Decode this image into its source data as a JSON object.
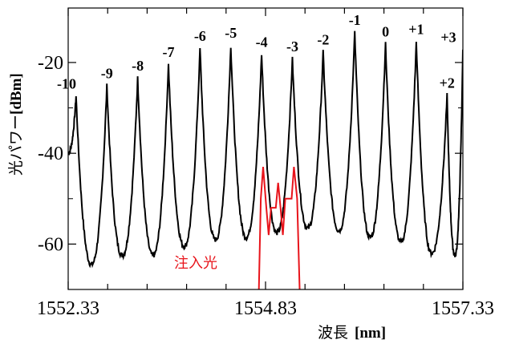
{
  "chart_data": {
    "type": "line",
    "title": "",
    "xlabel_main": "波長",
    "xlabel_unit": "[nm]",
    "ylabel_main": "光パワー",
    "ylabel_unit": "[dBm]",
    "xlim": [
      1552.33,
      1557.33
    ],
    "ylim": [
      -70,
      -8
    ],
    "x_ticks": [
      1552.33,
      1554.83,
      1557.33
    ],
    "x_tick_labels": [
      "1552.33",
      "1554.83",
      "1557.33"
    ],
    "y_ticks": [
      -20,
      -40,
      -60
    ],
    "y_tick_labels": [
      "-20",
      "-40",
      "-60"
    ],
    "grid": false,
    "series": [
      {
        "color": "#000000",
        "peaks": [
          {
            "label": "-10",
            "x": 1552.43,
            "y": -27.5
          },
          {
            "label": "-9",
            "x": 1552.82,
            "y": -25.2
          },
          {
            "label": "-8",
            "x": 1553.21,
            "y": -23.5
          },
          {
            "label": "-7",
            "x": 1553.6,
            "y": -20.5
          },
          {
            "label": "-6",
            "x": 1554.0,
            "y": -17.0
          },
          {
            "label": "-5",
            "x": 1554.39,
            "y": -16.3
          },
          {
            "label": "-4",
            "x": 1554.78,
            "y": -18.3
          },
          {
            "label": "-3",
            "x": 1555.17,
            "y": -19.3
          },
          {
            "label": "-2",
            "x": 1555.56,
            "y": -17.8
          },
          {
            "label": "-1",
            "x": 1555.96,
            "y": -13.5
          },
          {
            "label": "0",
            "x": 1556.35,
            "y": -16.0
          },
          {
            "label": "+1",
            "x": 1556.74,
            "y": -15.5
          },
          {
            "label": "+2",
            "x": 1557.13,
            "y": -27.3
          },
          {
            "label": "+3",
            "x": 1557.33,
            "y": -17.3
          }
        ],
        "valleys": [
          -64.5,
          -62.5,
          -62.5,
          -60.5,
          -59.0,
          -58.5,
          -57.5,
          -56.5,
          -57.0,
          -58.5,
          -59.5,
          -62.0,
          -62.5
        ]
      },
      {
        "color": "#e8141b",
        "annotation": "注入光",
        "peaks": [
          {
            "x": 1554.8,
            "y": -43.0
          },
          {
            "x": 1554.99,
            "y": -46.5
          },
          {
            "x": 1555.19,
            "y": -43.0
          }
        ]
      }
    ]
  }
}
